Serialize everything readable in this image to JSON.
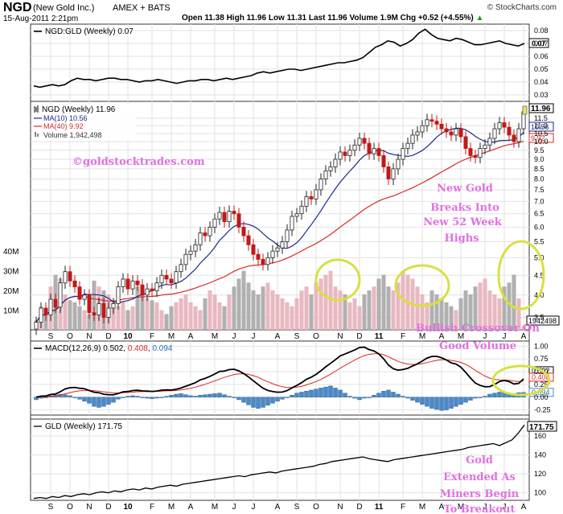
{
  "header": {
    "symbol": "NGD",
    "company": "(New Gold Inc.)",
    "exchange": "AMEX + BATS",
    "date": "15-Aug-2011 2:21pm",
    "brand": "© StockCharts.com",
    "quote": "Open 11.38  High 11.96  Low 11.31  Last 11.96  Volume 1.9M  Chg +0.52 (+4.55%)",
    "quote_arrow": "▲"
  },
  "colors": {
    "up_bar": "#e8b8c0",
    "down_bar": "#b0b0b0",
    "candle_up": "#222222",
    "candle_down": "#c01818",
    "ma10": "#1a2a8a",
    "ma40": "#d82828",
    "macd_signal": "#d82828",
    "histogram": "#4a8ac8",
    "annotation": "#e070e0",
    "circle": "#d8e040"
  },
  "chart_data": [
    {
      "type": "line",
      "panel": "ratio",
      "title": "NGD:GLD (Weekly) 0.07",
      "ylim": [
        0.025,
        0.085
      ],
      "yticks": [
        0.03,
        0.04,
        0.05,
        0.06,
        0.07,
        0.08
      ],
      "last_label": "0.07",
      "x": [
        0,
        2,
        4,
        6,
        8,
        10,
        12,
        14,
        16,
        18,
        20,
        22,
        24,
        26,
        28,
        30,
        32,
        34,
        36,
        38,
        40,
        42,
        44,
        46,
        48,
        50,
        52,
        54,
        56,
        58,
        60,
        62,
        64,
        66,
        68,
        70,
        72,
        74,
        76,
        78,
        80,
        82,
        84,
        86,
        88,
        90,
        92,
        94,
        96,
        98,
        100,
        102,
        104,
        106,
        108,
        110,
        112,
        114,
        116,
        118,
        120,
        122,
        124,
        126,
        128,
        130,
        132,
        134,
        136,
        138,
        140,
        142,
        144,
        146,
        148,
        150,
        152,
        154,
        156,
        158
      ],
      "values": [
        0.037,
        0.036,
        0.037,
        0.038,
        0.037,
        0.038,
        0.041,
        0.043,
        0.042,
        0.042,
        0.041,
        0.042,
        0.043,
        0.043,
        0.042,
        0.042,
        0.041,
        0.04,
        0.041,
        0.041,
        0.042,
        0.041,
        0.04,
        0.039,
        0.04,
        0.041,
        0.041,
        0.042,
        0.042,
        0.041,
        0.042,
        0.043,
        0.042,
        0.043,
        0.044,
        0.045,
        0.047,
        0.048,
        0.047,
        0.048,
        0.049,
        0.05,
        0.05,
        0.049,
        0.05,
        0.051,
        0.052,
        0.053,
        0.054,
        0.055,
        0.055,
        0.056,
        0.057,
        0.059,
        0.063,
        0.067,
        0.069,
        0.072,
        0.071,
        0.068,
        0.07,
        0.073,
        0.078,
        0.081,
        0.077,
        0.074,
        0.073,
        0.072,
        0.074,
        0.073,
        0.071,
        0.069,
        0.069,
        0.07,
        0.071,
        0.072,
        0.07,
        0.069,
        0.068,
        0.07
      ]
    },
    {
      "type": "candlestick",
      "panel": "price",
      "title": "NGD (Weekly) 11.96",
      "log_scale": true,
      "ylim": [
        3.25,
        12.6
      ],
      "yticks": [
        3.5,
        4.0,
        4.5,
        5.0,
        5.5,
        6.0,
        6.5,
        7.0,
        7.5,
        8.0,
        8.5,
        9.0,
        9.5,
        10.0,
        10.5,
        11.0,
        11.5
      ],
      "legend": [
        {
          "label": "MA(10) 10.56",
          "color": "#1a2a8a"
        },
        {
          "label": "MA(40) 9.92",
          "color": "#d82828"
        },
        {
          "label": "Volume 1,942,498",
          "color": "#888888"
        }
      ],
      "last_labels": {
        "price": "11.96",
        "ma10": "10.56",
        "ma40": "9.92"
      },
      "close": [
        3.4,
        3.7,
        3.55,
        3.9,
        3.72,
        4.3,
        4.6,
        4.35,
        4.2,
        3.9,
        4.0,
        3.6,
        3.55,
        3.8,
        3.5,
        3.7,
        3.8,
        4.2,
        4.4,
        4.15,
        4.35,
        4.25,
        4.0,
        4.15,
        4.1,
        4.3,
        4.5,
        4.4,
        4.3,
        4.6,
        4.8,
        5.1,
        5.2,
        5.4,
        5.8,
        5.7,
        6.0,
        6.3,
        6.55,
        6.2,
        6.6,
        6.5,
        6.0,
        5.7,
        5.4,
        5.1,
        4.95,
        4.8,
        5.0,
        5.2,
        5.3,
        5.5,
        5.9,
        6.4,
        6.5,
        6.8,
        7.2,
        7.1,
        7.5,
        8.0,
        8.4,
        8.6,
        9.0,
        9.4,
        9.2,
        9.5,
        9.8,
        10.2,
        9.9,
        9.3,
        9.6,
        9.2,
        8.6,
        8.0,
        8.5,
        9.0,
        9.6,
        9.9,
        10.4,
        10.6,
        11.0,
        11.4,
        11.3,
        11.1,
        10.8,
        10.6,
        10.4,
        10.8,
        10.3,
        9.6,
        9.2,
        9.1,
        9.6,
        9.8,
        10.2,
        10.8,
        11.2,
        10.9,
        10.4,
        10.0,
        10.8,
        11.96
      ],
      "volume_ylim": [
        0,
        45
      ],
      "volume_yticks": [
        10,
        20,
        30,
        40
      ],
      "volume_tick_labels": [
        "10M",
        "20M",
        "30M",
        "40M"
      ],
      "volume_last_label": "1942498",
      "volume_millions": [
        5,
        12,
        10,
        22,
        28,
        26,
        18,
        15,
        14,
        12,
        10,
        8,
        25,
        22,
        20,
        18,
        15,
        12,
        14,
        10,
        12,
        22,
        18,
        16,
        15,
        14,
        10,
        8,
        12,
        14,
        16,
        18,
        14,
        12,
        10,
        16,
        20,
        18,
        14,
        12,
        18,
        22,
        26,
        30,
        24,
        20,
        18,
        22,
        24,
        20,
        18,
        16,
        14,
        12,
        16,
        20,
        22,
        18,
        24,
        26,
        28,
        30,
        22,
        20,
        18,
        14,
        16,
        12,
        18,
        20,
        22,
        26,
        28,
        22,
        20,
        24,
        30,
        28,
        26,
        22,
        18,
        14,
        20,
        18,
        16,
        14,
        12,
        10,
        16,
        20,
        18,
        22,
        24,
        26,
        20,
        18,
        16,
        22,
        24,
        28,
        16,
        2
      ]
    },
    {
      "type": "line",
      "panel": "macd",
      "title": "MACD(12,26,9) 0.502, 0.408, 0.094",
      "legend_values": [
        "0.502",
        "0.408",
        "0.094"
      ],
      "ylim": [
        -0.35,
        1.1
      ],
      "yticks": [
        -0.25,
        0.0,
        0.25,
        0.5,
        0.75,
        1.0
      ],
      "last_labels": {
        "macd": "0.502",
        "signal": "0.408",
        "histogram": "0.094"
      },
      "histogram_values": [
        -0.05,
        -0.02,
        0.0,
        0.03,
        0.05,
        0.06,
        0.05,
        0.03,
        0.0,
        -0.04,
        -0.08,
        -0.12,
        -0.18,
        -0.2,
        -0.18,
        -0.14,
        -0.1,
        -0.04,
        0.0,
        0.02,
        0.03,
        0.02,
        0.0,
        -0.02,
        -0.03,
        -0.02,
        0.0,
        0.02,
        0.04,
        0.06,
        0.07,
        0.05,
        0.03,
        0.02,
        0.04,
        0.05,
        0.06,
        0.07,
        0.08,
        0.05,
        0.02,
        0.0,
        -0.05,
        -0.1,
        -0.15,
        -0.2,
        -0.22,
        -0.2,
        -0.16,
        -0.12,
        -0.08,
        -0.04,
        0.0,
        0.04,
        0.08,
        0.1,
        0.12,
        0.14,
        0.16,
        0.18,
        0.2,
        0.22,
        0.18,
        0.14,
        0.08,
        0.02,
        -0.02,
        -0.05,
        -0.02,
        0.0,
        0.04,
        0.08,
        0.12,
        0.14,
        0.1,
        0.06,
        0.02,
        -0.02,
        -0.06,
        -0.1,
        -0.14,
        -0.18,
        -0.22,
        -0.24,
        -0.26,
        -0.25,
        -0.22,
        -0.18,
        -0.14,
        -0.1,
        -0.06,
        -0.02,
        0.0,
        0.02,
        0.06,
        0.08,
        0.1,
        0.09,
        0.08,
        0.07,
        0.09,
        0.094
      ]
    },
    {
      "type": "line",
      "panel": "gld",
      "title": "GLD (Weekly) 171.75",
      "ylim": [
        92,
        178
      ],
      "yticks": [
        100,
        120,
        140,
        160
      ],
      "last_label": "171.75",
      "x": [
        0,
        2,
        4,
        6,
        8,
        10,
        12,
        14,
        16,
        18,
        20,
        22,
        24,
        26,
        28,
        30,
        32,
        34,
        36,
        38,
        40,
        42,
        44,
        46,
        48,
        50,
        52,
        54,
        56,
        58,
        60,
        62,
        64,
        66,
        68,
        70,
        72,
        74,
        76,
        78,
        80,
        82,
        84,
        86,
        88,
        90,
        92,
        94,
        96,
        98,
        100,
        102,
        104,
        106,
        108,
        110,
        112,
        114,
        116,
        118,
        120,
        122,
        124,
        126,
        128,
        130,
        132,
        134,
        136,
        138,
        140,
        142,
        144,
        146,
        148,
        150,
        152,
        154,
        156,
        158
      ],
      "values": [
        94,
        95,
        94,
        96,
        95,
        97,
        96,
        98,
        99,
        98,
        100,
        101,
        100,
        102,
        101,
        103,
        104,
        103,
        105,
        104,
        106,
        107,
        108,
        107,
        109,
        110,
        111,
        112,
        113,
        114,
        115,
        116,
        117,
        118,
        117,
        119,
        120,
        121,
        122,
        121,
        123,
        124,
        125,
        126,
        127,
        128,
        130,
        131,
        133,
        134,
        135,
        136,
        137,
        138,
        136,
        135,
        134,
        133,
        135,
        136,
        137,
        138,
        139,
        140,
        141,
        142,
        143,
        144,
        145,
        146,
        148,
        149,
        150,
        151,
        152,
        150,
        153,
        156,
        163,
        171.75
      ]
    }
  ],
  "x_axis": {
    "labels": [
      {
        "text": "S",
        "at": 3
      },
      {
        "text": "O",
        "at": 7
      },
      {
        "text": "N",
        "at": 11
      },
      {
        "text": "D",
        "at": 15
      },
      {
        "text": "10",
        "at": 19,
        "bold": true
      },
      {
        "text": "F",
        "at": 24
      },
      {
        "text": "M",
        "at": 28
      },
      {
        "text": "A",
        "at": 32
      },
      {
        "text": "M",
        "at": 37
      },
      {
        "text": "J",
        "at": 41
      },
      {
        "text": "J",
        "at": 45
      },
      {
        "text": "A",
        "at": 50
      },
      {
        "text": "S",
        "at": 54
      },
      {
        "text": "O",
        "at": 58
      },
      {
        "text": "N",
        "at": 63
      },
      {
        "text": "D",
        "at": 67
      },
      {
        "text": "11",
        "at": 71,
        "bold": true
      },
      {
        "text": "F",
        "at": 76
      },
      {
        "text": "M",
        "at": 80
      },
      {
        "text": "A",
        "at": 84
      },
      {
        "text": "M",
        "at": 88
      },
      {
        "text": "J",
        "at": 93
      },
      {
        "text": "J",
        "at": 97
      },
      {
        "text": "A",
        "at": 101
      }
    ]
  },
  "annotations": {
    "watermark": "©goldstocktrades.com",
    "breakout_lines": [
      "New Gold",
      "Breaks Into",
      "New 52 Week",
      "Highs"
    ],
    "crossover_lines": [
      "Bullish Crossover On",
      "Good Volume"
    ],
    "gld_lines": [
      "Gold",
      "Extended As",
      "Miners Begin",
      "To Breakout"
    ]
  }
}
